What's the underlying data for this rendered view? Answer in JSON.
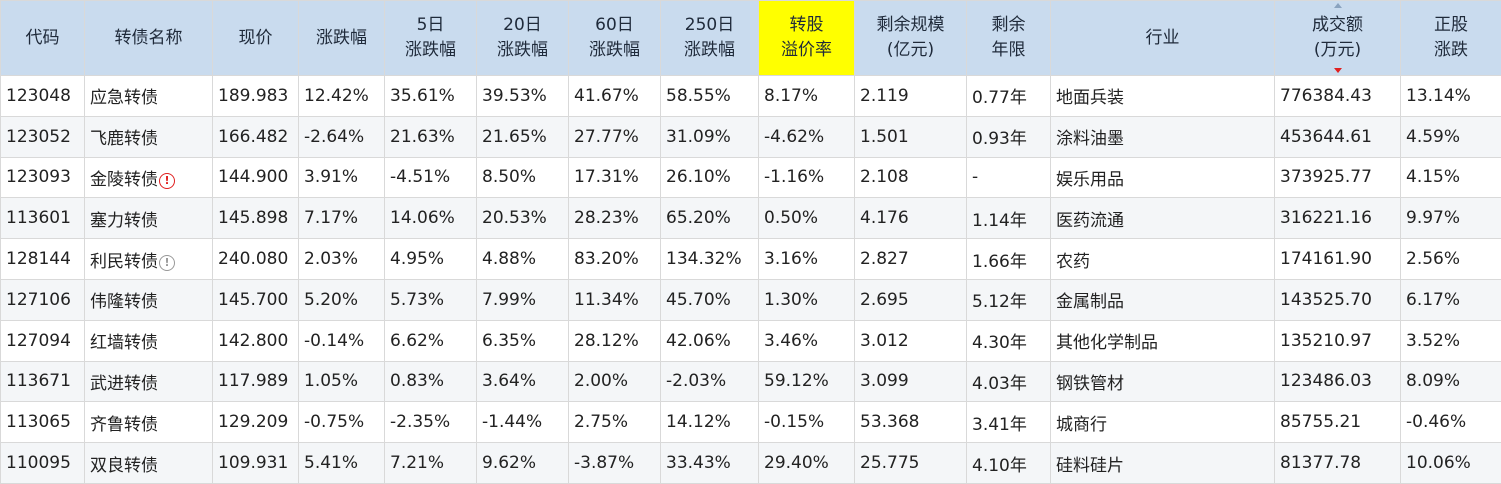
{
  "headers": [
    {
      "l1": "代码",
      "l2": ""
    },
    {
      "l1": "转债名称",
      "l2": ""
    },
    {
      "l1": "现价",
      "l2": ""
    },
    {
      "l1": "涨跌幅",
      "l2": ""
    },
    {
      "l1": "5日",
      "l2": "涨跌幅"
    },
    {
      "l1": "20日",
      "l2": "涨跌幅"
    },
    {
      "l1": "60日",
      "l2": "涨跌幅"
    },
    {
      "l1": "250日",
      "l2": "涨跌幅"
    },
    {
      "l1": "转股",
      "l2": "溢价率"
    },
    {
      "l1": "剩余规模",
      "l2": "(亿元)"
    },
    {
      "l1": "剩余",
      "l2": "年限"
    },
    {
      "l1": "行业",
      "l2": ""
    },
    {
      "l1": "成交额",
      "l2": "(万元)"
    },
    {
      "l1": "正股",
      "l2": "涨跌"
    }
  ],
  "highlight_color": "#ffff00",
  "up_color": "#e02020",
  "down_color": "#1c9a1c",
  "rows": [
    {
      "code": "123048",
      "name": "应急转债",
      "price": "189.983",
      "chg": "12.42%",
      "d5": "35.61%",
      "d20": "39.53%",
      "d60": "41.67%",
      "d250": "58.55%",
      "prem": "8.17%",
      "size": "2.119",
      "years": "0.77年",
      "industry": "地面兵装",
      "turnover": "776384.43",
      "stock_chg": "13.14%"
    },
    {
      "code": "123052",
      "name": "飞鹿转债",
      "price": "166.482",
      "chg": "-2.64%",
      "d5": "21.63%",
      "d20": "21.65%",
      "d60": "27.77%",
      "d250": "31.09%",
      "prem": "-4.62%",
      "size": "1.501",
      "years": "0.93年",
      "industry": "涂料油墨",
      "turnover": "453644.61",
      "stock_chg": "4.59%"
    },
    {
      "code": "123093",
      "name": "金陵转债",
      "price": "144.900",
      "chg": "3.91%",
      "d5": "-4.51%",
      "d20": "8.50%",
      "d60": "17.31%",
      "d250": "26.10%",
      "prem": "-1.16%",
      "size": "2.108",
      "years": "-",
      "industry": "娱乐用品",
      "turnover": "373925.77",
      "stock_chg": "4.15%"
    },
    {
      "code": "113601",
      "name": "塞力转债",
      "price": "145.898",
      "chg": "7.17%",
      "d5": "14.06%",
      "d20": "20.53%",
      "d60": "28.23%",
      "d250": "65.20%",
      "prem": "0.50%",
      "size": "4.176",
      "years": "1.14年",
      "industry": "医药流通",
      "turnover": "316221.16",
      "stock_chg": "9.97%"
    },
    {
      "code": "128144",
      "name": "利民转债",
      "price": "240.080",
      "chg": "2.03%",
      "d5": "4.95%",
      "d20": "4.88%",
      "d60": "83.20%",
      "d250": "134.32%",
      "prem": "3.16%",
      "size": "2.827",
      "years": "1.66年",
      "industry": "农药",
      "turnover": "174161.90",
      "stock_chg": "2.56%"
    },
    {
      "code": "127106",
      "name": "伟隆转债",
      "price": "145.700",
      "chg": "5.20%",
      "d5": "5.73%",
      "d20": "7.99%",
      "d60": "11.34%",
      "d250": "45.70%",
      "prem": "1.30%",
      "size": "2.695",
      "years": "5.12年",
      "industry": "金属制品",
      "turnover": "143525.70",
      "stock_chg": "6.17%"
    },
    {
      "code": "127094",
      "name": "红墙转债",
      "price": "142.800",
      "chg": "-0.14%",
      "d5": "6.62%",
      "d20": "6.35%",
      "d60": "28.12%",
      "d250": "42.06%",
      "prem": "3.46%",
      "size": "3.012",
      "years": "4.30年",
      "industry": "其他化学制品",
      "turnover": "135210.97",
      "stock_chg": "3.52%"
    },
    {
      "code": "113671",
      "name": "武进转债",
      "price": "117.989",
      "chg": "1.05%",
      "d5": "0.83%",
      "d20": "3.64%",
      "d60": "2.00%",
      "d250": "-2.03%",
      "prem": "59.12%",
      "size": "3.099",
      "years": "4.03年",
      "industry": "钢铁管材",
      "turnover": "123486.03",
      "stock_chg": "8.09%"
    },
    {
      "code": "113065",
      "name": "齐鲁转债",
      "price": "129.209",
      "chg": "-0.75%",
      "d5": "-2.35%",
      "d20": "-1.44%",
      "d60": "2.75%",
      "d250": "14.12%",
      "prem": "-0.15%",
      "size": "53.368",
      "years": "3.41年",
      "industry": "城商行",
      "turnover": "85755.21",
      "stock_chg": "-0.46%"
    },
    {
      "code": "110095",
      "name": "双良转债",
      "price": "109.931",
      "chg": "5.41%",
      "d5": "7.21%",
      "d20": "9.62%",
      "d60": "-3.87%",
      "d250": "33.43%",
      "prem": "29.40%",
      "size": "25.775",
      "years": "4.10年",
      "industry": "硅料硅片",
      "turnover": "81377.78",
      "stock_chg": "10.06%"
    }
  ],
  "name_red_rows": [
    1
  ],
  "warn_icons": {
    "2": "warn-red",
    "4": "warn-gray"
  },
  "warn_glyph": "!"
}
